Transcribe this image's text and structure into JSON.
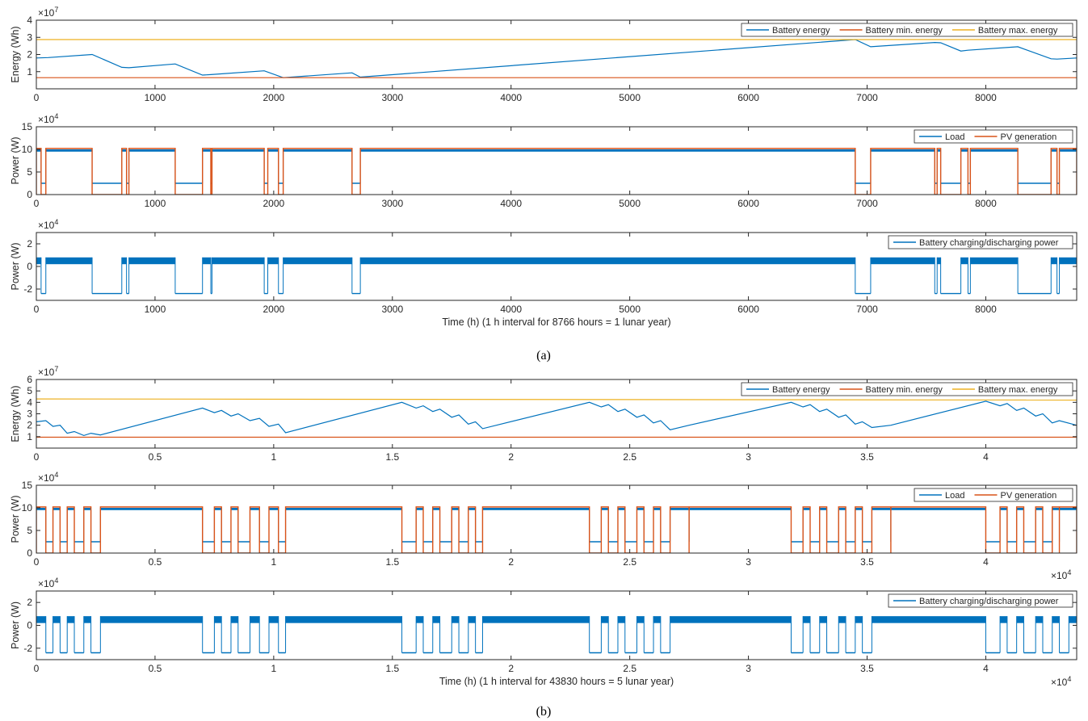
{
  "colors": {
    "blue": "#0072bd",
    "orange": "#d95319",
    "yellow": "#edb120",
    "axis": "#262626"
  },
  "chart_data": [
    {
      "panel_id": "a1",
      "type": "line",
      "ylabel": "Energy (Wh)",
      "y_exponent": "×10",
      "y_exponent_power": "7",
      "xlim": [
        0,
        8766
      ],
      "ylim": [
        0,
        40000000
      ],
      "xticks": [
        0,
        1000,
        2000,
        3000,
        4000,
        5000,
        6000,
        7000,
        8000
      ],
      "xtick_labels": [
        "0",
        "1000",
        "2000",
        "3000",
        "4000",
        "5000",
        "6000",
        "7000",
        "8000"
      ],
      "yticks": [
        10000000,
        20000000,
        30000000,
        40000000
      ],
      "ytick_labels": [
        "1",
        "2",
        "3",
        "4"
      ],
      "legend": "top-right",
      "series": [
        {
          "name": "Battery energy",
          "color": "blue",
          "style": "line",
          "x": [
            0,
            100,
            470,
            720,
            780,
            1170,
            1400,
            1470,
            1920,
            2080,
            2660,
            2730,
            6900,
            7030,
            7570,
            7620,
            7790,
            7850,
            8270,
            8550,
            8600,
            8766
          ],
          "y": [
            18000000,
            18200000,
            20000000,
            12500000,
            12300000,
            14500000,
            8000000,
            8300000,
            10500000,
            6500000,
            9300000,
            6800000,
            28700000,
            24500000,
            27000000,
            26800000,
            22000000,
            22500000,
            24500000,
            17500000,
            17300000,
            18000000
          ]
        },
        {
          "name": "Battery min. energy",
          "color": "orange",
          "style": "line",
          "x": [
            0,
            8766
          ],
          "y": [
            6500000,
            6500000
          ]
        },
        {
          "name": "Battery max. energy",
          "color": "yellow",
          "style": "line",
          "x": [
            0,
            8766
          ],
          "y": [
            28700000,
            28700000
          ]
        }
      ]
    },
    {
      "panel_id": "a2",
      "type": "line",
      "ylabel": "Power (W)",
      "y_exponent": "×10",
      "y_exponent_power": "4",
      "xlim": [
        0,
        8766
      ],
      "ylim": [
        0,
        150000
      ],
      "xticks": [
        0,
        1000,
        2000,
        3000,
        4000,
        5000,
        6000,
        7000,
        8000
      ],
      "xtick_labels": [
        "0",
        "1000",
        "2000",
        "3000",
        "4000",
        "5000",
        "6000",
        "7000",
        "8000"
      ],
      "yticks": [
        0,
        50000,
        100000,
        150000
      ],
      "ytick_labels": [
        "0",
        "5",
        "10",
        "15"
      ],
      "legend": "top-right",
      "on_intervals": [
        [
          0,
          40
        ],
        [
          80,
          470
        ],
        [
          720,
          760
        ],
        [
          780,
          1170
        ],
        [
          1400,
          1470
        ],
        [
          1480,
          1920
        ],
        [
          1950,
          2040
        ],
        [
          2080,
          2660
        ],
        [
          2730,
          6900
        ],
        [
          7030,
          7570
        ],
        [
          7590,
          7620
        ],
        [
          7790,
          7850
        ],
        [
          7870,
          8270
        ],
        [
          8550,
          8600
        ],
        [
          8620,
          8766
        ]
      ],
      "series": [
        {
          "name": "Load",
          "color": "blue",
          "style": "band",
          "on_value": [
            95000,
            100000
          ],
          "off_value": 25000
        },
        {
          "name": "PV generation",
          "color": "orange",
          "style": "step",
          "on_value": 102000,
          "off_value": 0
        }
      ]
    },
    {
      "panel_id": "a3",
      "type": "line",
      "ylabel": "Power (W)",
      "y_exponent": "×10",
      "y_exponent_power": "4",
      "xlim": [
        0,
        8766
      ],
      "ylim": [
        -30000,
        30000
      ],
      "xticks": [
        0,
        1000,
        2000,
        3000,
        4000,
        5000,
        6000,
        7000,
        8000
      ],
      "xtick_labels": [
        "0",
        "1000",
        "2000",
        "3000",
        "4000",
        "5000",
        "6000",
        "7000",
        "8000"
      ],
      "yticks": [
        -20000,
        0,
        20000
      ],
      "ytick_labels": [
        "-2",
        "0",
        "2"
      ],
      "xlabel": "Time (h) (1 h interval for 8766 hours = 1 lunar year)",
      "legend": "top-right",
      "on_intervals": [
        [
          0,
          40
        ],
        [
          80,
          470
        ],
        [
          720,
          760
        ],
        [
          780,
          1170
        ],
        [
          1400,
          1470
        ],
        [
          1480,
          1920
        ],
        [
          1950,
          2040
        ],
        [
          2080,
          2660
        ],
        [
          2730,
          6900
        ],
        [
          7030,
          7570
        ],
        [
          7590,
          7620
        ],
        [
          7790,
          7850
        ],
        [
          7870,
          8270
        ],
        [
          8550,
          8600
        ],
        [
          8620,
          8766
        ]
      ],
      "series": [
        {
          "name": "Battery charging/discharging power",
          "color": "blue",
          "style": "band",
          "on_value": [
            2000,
            8000
          ],
          "off_value": -24000
        }
      ]
    },
    {
      "panel_id": "b1",
      "type": "line",
      "ylabel": "Energy (Wh)",
      "y_exponent": "×10",
      "y_exponent_power": "7",
      "xlim": [
        0,
        43830
      ],
      "ylim": [
        0,
        60000000
      ],
      "xticks": [
        0,
        5000,
        10000,
        15000,
        20000,
        25000,
        30000,
        35000,
        40000
      ],
      "xtick_labels": [
        "0",
        "0.5",
        "1",
        "1.5",
        "2",
        "2.5",
        "3",
        "3.5",
        "4"
      ],
      "yticks": [
        10000000,
        20000000,
        30000000,
        40000000,
        50000000,
        60000000
      ],
      "ytick_labels": [
        "1",
        "2",
        "3",
        "4",
        "5",
        "6"
      ],
      "legend": "top-right",
      "series": [
        {
          "name": "Battery energy",
          "color": "blue",
          "style": "line",
          "x": [
            0,
            400,
            700,
            1000,
            1300,
            1600,
            2000,
            2300,
            2700,
            7000,
            7500,
            7800,
            8200,
            8500,
            9000,
            9400,
            9800,
            10200,
            10500,
            15400,
            16000,
            16300,
            16700,
            17000,
            17500,
            17800,
            18200,
            18500,
            18800,
            23300,
            23800,
            24100,
            24500,
            24800,
            25300,
            25600,
            26000,
            26300,
            26700,
            27500,
            31800,
            32300,
            32600,
            33000,
            33300,
            33800,
            34100,
            34500,
            34800,
            35200,
            36000,
            40000,
            40600,
            40900,
            41300,
            41600,
            42100,
            42400,
            42800,
            43100,
            43830
          ],
          "y": [
            23000000,
            24000000,
            19000000,
            20000000,
            13000000,
            14500000,
            11000000,
            13000000,
            11500000,
            35000000,
            31000000,
            33000000,
            28000000,
            30000000,
            24000000,
            26000000,
            19000000,
            21000000,
            13500000,
            40000000,
            35000000,
            37000000,
            32000000,
            34000000,
            27000000,
            29000000,
            21000000,
            23000000,
            17000000,
            40000000,
            36000000,
            38000000,
            32000000,
            34000000,
            27000000,
            29000000,
            22000000,
            24000000,
            16000000,
            20000000,
            40000000,
            36000000,
            38000000,
            32000000,
            34000000,
            27000000,
            29000000,
            21000000,
            23000000,
            18000000,
            20000000,
            41000000,
            37000000,
            39000000,
            33000000,
            35000000,
            28000000,
            30000000,
            22000000,
            24000000,
            20000000
          ]
        },
        {
          "name": "Battery min. energy",
          "color": "orange",
          "style": "line",
          "x": [
            0,
            43830
          ],
          "y": [
            9500000,
            9500000
          ]
        },
        {
          "name": "Battery max. energy",
          "color": "yellow",
          "style": "line",
          "x": [
            0,
            43830
          ],
          "y": [
            43000000,
            42000000
          ]
        }
      ]
    },
    {
      "panel_id": "b2",
      "type": "line",
      "ylabel": "Power (W)",
      "y_exponent": "×10",
      "y_exponent_power": "4",
      "x_exponent": "×10",
      "x_exponent_power": "4",
      "xlim": [
        0,
        43830
      ],
      "ylim": [
        0,
        150000
      ],
      "xticks": [
        0,
        5000,
        10000,
        15000,
        20000,
        25000,
        30000,
        35000,
        40000
      ],
      "xtick_labels": [
        "0",
        "0.5",
        "1",
        "1.5",
        "2",
        "2.5",
        "3",
        "3.5",
        "4"
      ],
      "yticks": [
        0,
        50000,
        100000,
        150000
      ],
      "ytick_labels": [
        "0",
        "5",
        "10",
        "15"
      ],
      "legend": "top-right",
      "on_intervals": [
        [
          0,
          400
        ],
        [
          700,
          1000
        ],
        [
          1300,
          1600
        ],
        [
          2000,
          2300
        ],
        [
          2700,
          7000
        ],
        [
          7500,
          7800
        ],
        [
          8200,
          8500
        ],
        [
          9000,
          9400
        ],
        [
          9800,
          10200
        ],
        [
          10500,
          15400
        ],
        [
          16000,
          16300
        ],
        [
          16700,
          17000
        ],
        [
          17500,
          17800
        ],
        [
          18200,
          18500
        ],
        [
          18800,
          23300
        ],
        [
          23800,
          24100
        ],
        [
          24500,
          24800
        ],
        [
          25300,
          25600
        ],
        [
          26000,
          26300
        ],
        [
          26700,
          27500
        ],
        [
          27500,
          31800
        ],
        [
          32300,
          32600
        ],
        [
          33000,
          33300
        ],
        [
          33800,
          34100
        ],
        [
          34500,
          34800
        ],
        [
          35200,
          36000
        ],
        [
          36000,
          40000
        ],
        [
          40600,
          40900
        ],
        [
          41300,
          41600
        ],
        [
          42100,
          42400
        ],
        [
          42800,
          43100
        ],
        [
          43100,
          43830
        ]
      ],
      "series": [
        {
          "name": "Load",
          "color": "blue",
          "style": "band",
          "on_value": [
            95000,
            100000
          ],
          "off_value": 25000
        },
        {
          "name": "PV generation",
          "color": "orange",
          "style": "step",
          "on_value": 102000,
          "off_value": 0
        }
      ]
    },
    {
      "panel_id": "b3",
      "type": "line",
      "ylabel": "Power (W)",
      "y_exponent": "×10",
      "y_exponent_power": "4",
      "x_exponent": "×10",
      "x_exponent_power": "4",
      "xlim": [
        0,
        43830
      ],
      "ylim": [
        -30000,
        30000
      ],
      "xticks": [
        0,
        5000,
        10000,
        15000,
        20000,
        25000,
        30000,
        35000,
        40000
      ],
      "xtick_labels": [
        "0",
        "0.5",
        "1",
        "1.5",
        "2",
        "2.5",
        "3",
        "3.5",
        "4"
      ],
      "yticks": [
        -20000,
        0,
        20000
      ],
      "ytick_labels": [
        "-2",
        "0",
        "2"
      ],
      "xlabel": "Time (h) (1 h interval for 43830 hours = 5 lunar year)",
      "legend": "top-right",
      "on_intervals": [
        [
          0,
          400
        ],
        [
          700,
          1000
        ],
        [
          1300,
          1600
        ],
        [
          2000,
          2300
        ],
        [
          2700,
          7000
        ],
        [
          7500,
          7800
        ],
        [
          8200,
          8500
        ],
        [
          9000,
          9400
        ],
        [
          9800,
          10200
        ],
        [
          10500,
          15400
        ],
        [
          16000,
          16300
        ],
        [
          16700,
          17000
        ],
        [
          17500,
          17800
        ],
        [
          18200,
          18500
        ],
        [
          18800,
          23300
        ],
        [
          23800,
          24100
        ],
        [
          24500,
          24800
        ],
        [
          25300,
          25600
        ],
        [
          26000,
          26300
        ],
        [
          26700,
          31800
        ],
        [
          32300,
          32600
        ],
        [
          33000,
          33300
        ],
        [
          33800,
          34100
        ],
        [
          34500,
          34800
        ],
        [
          35200,
          40000
        ],
        [
          40600,
          40900
        ],
        [
          41300,
          41600
        ],
        [
          42100,
          42400
        ],
        [
          42800,
          43100
        ],
        [
          43500,
          43830
        ]
      ],
      "series": [
        {
          "name": "Battery charging/discharging power",
          "color": "blue",
          "style": "band",
          "on_value": [
            2000,
            8000
          ],
          "off_value": -24000
        }
      ]
    }
  ],
  "captions": {
    "a": "(a)",
    "b": "(b)"
  }
}
